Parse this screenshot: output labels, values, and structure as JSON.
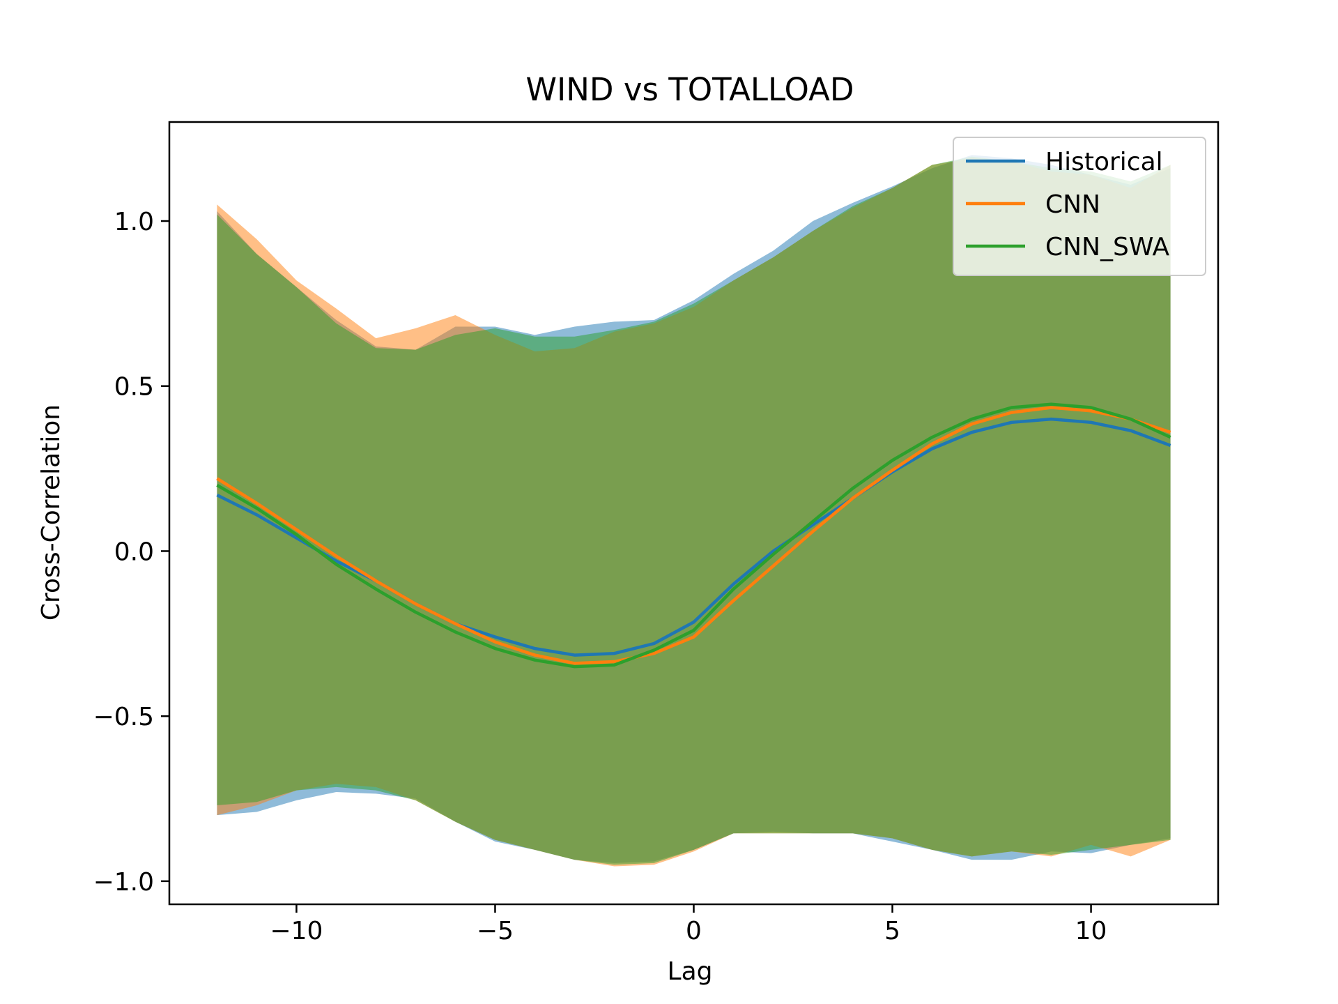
{
  "chart_data": {
    "type": "line",
    "title": "WIND vs TOTALLOAD",
    "xlabel": "Lag",
    "ylabel": "Cross-Correlation",
    "xlim": [
      -13.2,
      13.2
    ],
    "ylim": [
      -1.07,
      1.3
    ],
    "xticks": [
      -10,
      -5,
      0,
      5,
      10
    ],
    "xtick_labels": [
      "−10",
      "−5",
      "0",
      "5",
      "10"
    ],
    "yticks": [
      -1.0,
      -0.5,
      0.0,
      0.5,
      1.0
    ],
    "ytick_labels": [
      "−1.0",
      "−0.5",
      "0.0",
      "0.5",
      "1.0"
    ],
    "grid": false,
    "legend_position": "top-right",
    "x": [
      -12,
      -11,
      -10,
      -9,
      -8,
      -7,
      -6,
      -5,
      -4,
      -3,
      -2,
      -1,
      0,
      1,
      2,
      3,
      4,
      5,
      6,
      7,
      8,
      9,
      10,
      11,
      12
    ],
    "series": [
      {
        "name": "Historical",
        "color": "#1f77b4",
        "band_opacity": 0.5,
        "values": [
          0.17,
          0.11,
          0.04,
          -0.03,
          -0.09,
          -0.16,
          -0.22,
          -0.26,
          -0.295,
          -0.315,
          -0.31,
          -0.28,
          -0.215,
          -0.1,
          0.0,
          0.08,
          0.16,
          0.24,
          0.31,
          0.36,
          0.39,
          0.4,
          0.39,
          0.365,
          0.32
        ],
        "upper": [
          1.03,
          0.9,
          0.8,
          0.7,
          0.62,
          0.61,
          0.68,
          0.68,
          0.655,
          0.68,
          0.695,
          0.7,
          0.76,
          0.84,
          0.91,
          1.0,
          1.055,
          1.105,
          1.16,
          1.2,
          1.19,
          1.17,
          1.14,
          1.11,
          1.16
        ],
        "lower": [
          -0.8,
          -0.79,
          -0.755,
          -0.73,
          -0.735,
          -0.75,
          -0.82,
          -0.88,
          -0.905,
          -0.935,
          -0.945,
          -0.94,
          -0.905,
          -0.855,
          -0.85,
          -0.855,
          -0.855,
          -0.88,
          -0.905,
          -0.935,
          -0.935,
          -0.91,
          -0.915,
          -0.89,
          -0.87
        ]
      },
      {
        "name": "CNN",
        "color": "#ff7f0e",
        "band_opacity": 0.5,
        "values": [
          0.22,
          0.145,
          0.065,
          -0.015,
          -0.09,
          -0.16,
          -0.22,
          -0.275,
          -0.315,
          -0.34,
          -0.335,
          -0.31,
          -0.26,
          -0.15,
          -0.045,
          0.06,
          0.16,
          0.245,
          0.325,
          0.385,
          0.42,
          0.435,
          0.425,
          0.4,
          0.36
        ],
        "upper": [
          1.05,
          0.945,
          0.82,
          0.735,
          0.645,
          0.675,
          0.715,
          0.655,
          0.605,
          0.615,
          0.665,
          0.69,
          0.74,
          0.82,
          0.89,
          0.97,
          1.04,
          1.1,
          1.17,
          1.19,
          1.18,
          1.15,
          1.14,
          1.1,
          1.17
        ],
        "lower": [
          -0.8,
          -0.77,
          -0.725,
          -0.705,
          -0.715,
          -0.755,
          -0.82,
          -0.875,
          -0.905,
          -0.935,
          -0.955,
          -0.95,
          -0.91,
          -0.855,
          -0.855,
          -0.855,
          -0.855,
          -0.87,
          -0.905,
          -0.925,
          -0.91,
          -0.925,
          -0.89,
          -0.925,
          -0.875
        ]
      },
      {
        "name": "CNN_SWA",
        "color": "#2ca02c",
        "band_opacity": 0.5,
        "values": [
          0.2,
          0.13,
          0.05,
          -0.04,
          -0.115,
          -0.185,
          -0.245,
          -0.295,
          -0.33,
          -0.35,
          -0.345,
          -0.3,
          -0.24,
          -0.115,
          -0.01,
          0.09,
          0.19,
          0.275,
          0.345,
          0.4,
          0.435,
          0.445,
          0.435,
          0.4,
          0.345
        ],
        "upper": [
          1.02,
          0.9,
          0.8,
          0.69,
          0.615,
          0.61,
          0.655,
          0.675,
          0.65,
          0.65,
          0.67,
          0.695,
          0.75,
          0.82,
          0.89,
          0.97,
          1.045,
          1.1,
          1.17,
          1.195,
          1.18,
          1.16,
          1.15,
          1.12,
          1.17
        ],
        "lower": [
          -0.77,
          -0.76,
          -0.725,
          -0.715,
          -0.725,
          -0.755,
          -0.82,
          -0.875,
          -0.905,
          -0.935,
          -0.95,
          -0.945,
          -0.905,
          -0.855,
          -0.855,
          -0.855,
          -0.855,
          -0.87,
          -0.905,
          -0.925,
          -0.91,
          -0.92,
          -0.905,
          -0.89,
          -0.875
        ]
      }
    ]
  }
}
